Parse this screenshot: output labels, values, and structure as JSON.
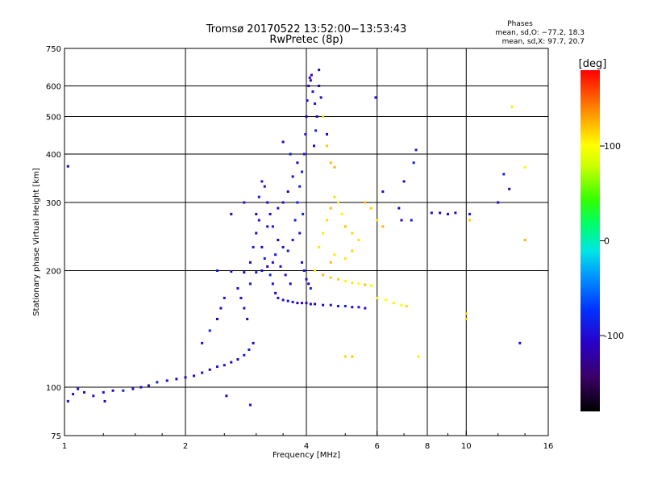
{
  "chart_data": {
    "type": "scatter",
    "title": "Tromsø 20170522 13:52:00−13:53:43",
    "subtitle": "RwPretec (8p)",
    "xlabel": "Frequency [MHz]",
    "ylabel": "Stationary phase Virtual Height [km]",
    "x_scale": "log",
    "y_scale": "log",
    "xlim": [
      1,
      16
    ],
    "ylim": [
      75,
      750
    ],
    "x_ticks": [
      1,
      2,
      4,
      6,
      8,
      10,
      16
    ],
    "y_ticks": [
      75,
      100,
      200,
      300,
      400,
      500,
      600,
      750
    ],
    "x_grid": [
      2,
      4,
      6,
      8,
      10
    ],
    "y_grid": [
      100,
      200,
      300,
      400,
      500,
      600
    ],
    "grid": true,
    "stats": {
      "title": "Phases",
      "line_o": "mean, sd,O: −77.2, 18.3",
      "line_x": "mean, sd,X:  97.7, 20.7"
    },
    "colorbar": {
      "label": "[deg]",
      "range": [
        -180,
        180
      ],
      "ticks": [
        100,
        0,
        -100
      ],
      "colormap": "rainbow (black-purple-blue-cyan-green-yellow-orange-red)"
    },
    "series": [
      {
        "name": "O",
        "color_value_deg": -100,
        "points": [
          [
            1.02,
            92
          ],
          [
            1.05,
            96
          ],
          [
            1.08,
            99
          ],
          [
            1.12,
            97
          ],
          [
            1.18,
            95
          ],
          [
            1.25,
            97
          ],
          [
            1.32,
            98
          ],
          [
            1.4,
            98
          ],
          [
            1.48,
            99
          ],
          [
            1.55,
            100
          ],
          [
            1.62,
            101
          ],
          [
            1.7,
            103
          ],
          [
            1.8,
            104
          ],
          [
            1.9,
            105
          ],
          [
            2.0,
            106
          ],
          [
            2.1,
            107
          ],
          [
            2.2,
            109
          ],
          [
            2.3,
            111
          ],
          [
            2.4,
            113
          ],
          [
            2.5,
            114
          ],
          [
            2.6,
            116
          ],
          [
            2.7,
            118
          ],
          [
            2.8,
            121
          ],
          [
            2.88,
            125
          ],
          [
            2.95,
            130
          ],
          [
            2.2,
            130
          ],
          [
            2.3,
            140
          ],
          [
            2.4,
            150
          ],
          [
            2.45,
            160
          ],
          [
            2.5,
            170
          ],
          [
            2.4,
            200
          ],
          [
            2.6,
            199
          ],
          [
            2.8,
            198
          ],
          [
            3.0,
            198
          ],
          [
            2.7,
            180
          ],
          [
            2.75,
            170
          ],
          [
            2.8,
            160
          ],
          [
            2.85,
            150
          ],
          [
            2.9,
            210
          ],
          [
            2.95,
            230
          ],
          [
            3.0,
            250
          ],
          [
            3.05,
            270
          ],
          [
            3.1,
            230
          ],
          [
            3.15,
            215
          ],
          [
            3.2,
            205
          ],
          [
            3.25,
            195
          ],
          [
            3.3,
            185
          ],
          [
            3.35,
            175
          ],
          [
            3.4,
            170
          ],
          [
            3.5,
            168
          ],
          [
            3.6,
            167
          ],
          [
            3.7,
            166
          ],
          [
            3.8,
            165
          ],
          [
            3.9,
            165
          ],
          [
            4.0,
            165
          ],
          [
            4.1,
            164
          ],
          [
            4.2,
            164
          ],
          [
            4.4,
            163
          ],
          [
            4.6,
            163
          ],
          [
            4.8,
            162
          ],
          [
            5.0,
            162
          ],
          [
            5.2,
            161
          ],
          [
            5.4,
            161
          ],
          [
            5.6,
            160
          ],
          [
            3.0,
            280
          ],
          [
            3.05,
            310
          ],
          [
            3.1,
            340
          ],
          [
            3.15,
            330
          ],
          [
            3.2,
            300
          ],
          [
            3.25,
            280
          ],
          [
            3.3,
            260
          ],
          [
            3.4,
            240
          ],
          [
            3.5,
            230
          ],
          [
            3.6,
            225
          ],
          [
            3.7,
            240
          ],
          [
            3.75,
            270
          ],
          [
            3.8,
            300
          ],
          [
            3.85,
            330
          ],
          [
            3.9,
            360
          ],
          [
            3.95,
            400
          ],
          [
            3.98,
            450
          ],
          [
            4.0,
            500
          ],
          [
            4.02,
            550
          ],
          [
            4.05,
            600
          ],
          [
            4.08,
            630
          ],
          [
            4.1,
            620
          ],
          [
            4.15,
            580
          ],
          [
            4.2,
            540
          ],
          [
            4.25,
            500
          ],
          [
            4.22,
            460
          ],
          [
            4.18,
            420
          ],
          [
            3.9,
            210
          ],
          [
            3.95,
            200
          ],
          [
            4.0,
            190
          ],
          [
            4.05,
            185
          ],
          [
            4.1,
            180
          ],
          [
            3.3,
            210
          ],
          [
            3.35,
            220
          ],
          [
            3.45,
            205
          ],
          [
            3.55,
            195
          ],
          [
            3.65,
            185
          ],
          [
            3.85,
            250
          ],
          [
            3.92,
            280
          ],
          [
            3.7,
            350
          ],
          [
            3.6,
            320
          ],
          [
            3.5,
            300
          ],
          [
            3.4,
            290
          ],
          [
            3.2,
            260
          ],
          [
            3.1,
            200
          ],
          [
            2.9,
            185
          ],
          [
            3.8,
            380
          ],
          [
            3.65,
            400
          ],
          [
            3.5,
            430
          ],
          [
            4.3,
            600
          ],
          [
            4.35,
            560
          ],
          [
            4.12,
            640
          ],
          [
            5.95,
            560
          ],
          [
            7.5,
            410
          ],
          [
            7.4,
            380
          ],
          [
            7.0,
            340
          ],
          [
            6.2,
            320
          ],
          [
            6.8,
            290
          ],
          [
            6.9,
            270
          ],
          [
            8.2,
            282
          ],
          [
            8.6,
            282
          ],
          [
            9.0,
            280
          ],
          [
            9.4,
            282
          ],
          [
            12.0,
            300
          ],
          [
            12.4,
            355
          ],
          [
            1.02,
            372
          ],
          [
            12.8,
            325
          ],
          [
            2.53,
            95
          ],
          [
            2.9,
            90
          ],
          [
            1.26,
            92
          ],
          [
            2.8,
            300
          ],
          [
            2.6,
            280
          ],
          [
            4.5,
            450
          ],
          [
            4.4,
            500
          ],
          [
            4.3,
            660
          ],
          [
            7.3,
            270
          ],
          [
            13.6,
            130
          ],
          [
            10.2,
            280
          ]
        ]
      },
      {
        "name": "X",
        "color_value_deg": 110,
        "points": [
          [
            4.2,
            200
          ],
          [
            4.4,
            195
          ],
          [
            4.6,
            192
          ],
          [
            4.8,
            190
          ],
          [
            5.0,
            188
          ],
          [
            5.2,
            186
          ],
          [
            5.4,
            185
          ],
          [
            5.6,
            184
          ],
          [
            5.8,
            183
          ],
          [
            6.0,
            170
          ],
          [
            6.3,
            168
          ],
          [
            6.6,
            165
          ],
          [
            6.9,
            163
          ],
          [
            7.1,
            162
          ],
          [
            4.3,
            230
          ],
          [
            4.4,
            250
          ],
          [
            4.5,
            270
          ],
          [
            4.6,
            290
          ],
          [
            4.7,
            310
          ],
          [
            4.8,
            300
          ],
          [
            4.9,
            280
          ],
          [
            5.0,
            260
          ],
          [
            5.2,
            250
          ],
          [
            5.4,
            240
          ],
          [
            5.6,
            300
          ],
          [
            5.8,
            290
          ],
          [
            6.0,
            270
          ],
          [
            6.2,
            260
          ],
          [
            4.6,
            210
          ],
          [
            4.7,
            220
          ],
          [
            5.0,
            215
          ],
          [
            5.2,
            225
          ],
          [
            4.5,
            420
          ],
          [
            4.6,
            380
          ],
          [
            4.4,
            500
          ],
          [
            4.7,
            370
          ],
          [
            5.0,
            120
          ],
          [
            5.2,
            120
          ],
          [
            13.0,
            530
          ],
          [
            14.0,
            370
          ],
          [
            14.0,
            240
          ],
          [
            10.0,
            155
          ],
          [
            10.0,
            150
          ],
          [
            7.6,
            120
          ],
          [
            10.2,
            270
          ]
        ]
      }
    ]
  }
}
